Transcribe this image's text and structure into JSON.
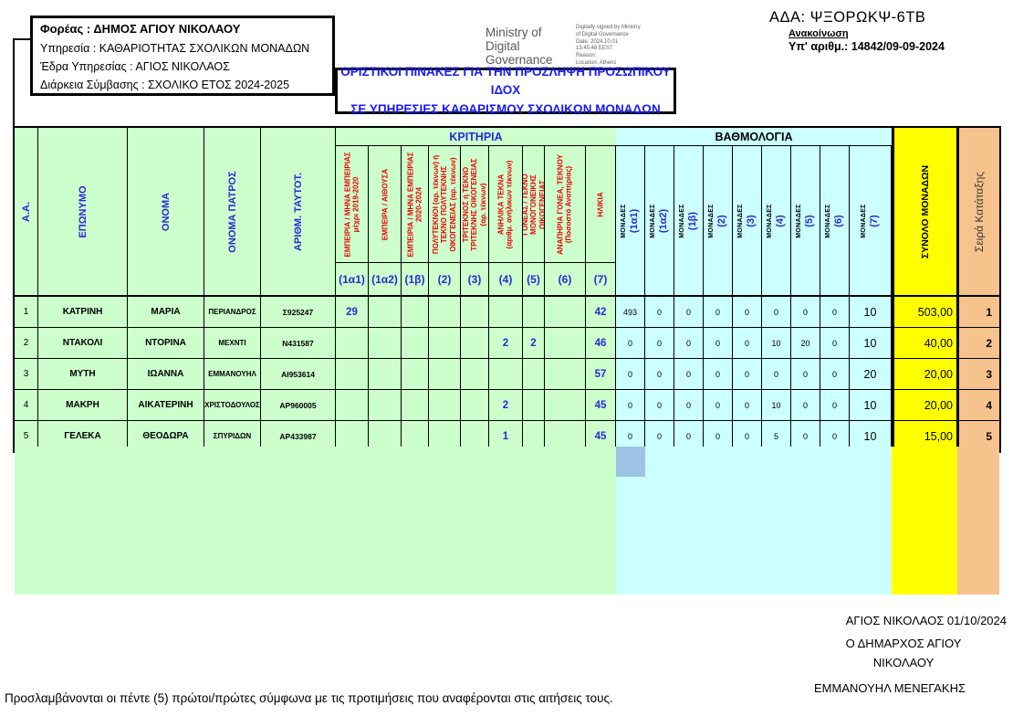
{
  "colors": {
    "green": "#ccffcc",
    "cyan": "#ccffff",
    "yellow": "#ffff00",
    "orange": "#f6c38d",
    "selection_blue": "#9dc3e6",
    "header_blue_text": "#2a2ad4",
    "criteria_red_text": "#ee0000",
    "title_blue_text": "#1a1aff"
  },
  "info_box": {
    "line1": "Φορέας : ΔΗΜΟΣ ΑΓΙΟΥ ΝΙΚΟΛΑΟΥ",
    "line2": "Υπηρεσία : ΚΑΘΑΡΙΟΤΗΤΑΣ  ΣΧΟΛΙΚΩΝ ΜΟΝΑΔΩΝ",
    "line3": "Έδρα Υπηρεσίας :  ΑΓΙΟΣ ΝΙΚΟΛΑΟΣ",
    "line4": "Διάρκεια Σύμβασης :  ΣΧΟΛΙΚΟ ΕΤΟΣ 2024-2025"
  },
  "signature_stamp": {
    "name": "Ministry of\nDigital\nGovernance",
    "details": "Digitally signed by Ministry\nof Digital Governance\nDate: 2024.10.01\n13:45:48 EEST\nReason:\nLocation: Athens"
  },
  "ada": {
    "code": "ΑΔΑ: ΨΞΟΡΩΚΨ-6ΤΒ",
    "announcement": "Ανακοίνωση",
    "number": "Υπ' αριθμ.: 14842/09-09-2024"
  },
  "title_box": {
    "line1": "ΟΡΙΣΤΙΚΟΙ ΠΙΝΑΚΕΣ ΓΙΑ ΤΗΝ ΠΡΟΣΛΗΨΗ ΠΡΟΣΩΠΙΚΟΥ ΙΔΟΧ",
    "line2": "ΣΕ ΥΠΗΡΕΣΙΕΣ ΚΑΘΑΡΙΣΜΟΥ ΣΧΟΛΙΚΩΝ ΜΟΝΑΔΩΝ"
  },
  "table": {
    "left_headers": [
      "Α.Α.",
      "ΕΠΩΝΥΜΟ",
      "ΟΝΟΜΑ",
      "ΟΝΟΜΑ ΠΑΤΡΟΣ",
      "ΑΡΙΘΜ. ΤΑΥΤΟΤ."
    ],
    "criteria": {
      "title": "ΚΡΙΤΗΡΙΑ",
      "columns": [
        {
          "label": "ΕΜΠΕΙΡΙΑ / ΜΗΝΑ ΕΜΠΕΙΡΙΑΣ\nμέχρι 2019-2020",
          "code": "(1α1)"
        },
        {
          "label": "ΕΜΠΕΙΡΑ / ΑΙΘΟΥΣΑ",
          "code": "(1α2)"
        },
        {
          "label": "ΕΜΠΕΙΡΙΑ / ΜΗΝΑ ΕΜΠΕΙΡΙΑΣ\n2020-2024",
          "code": "(1β)"
        },
        {
          "label": "ΠΟΛΥΤΕΚΝΟΙ (αρ. τέκνων) ή\nΤΕΚΝΟ ΠΟΛΥΤΕΚΝΗΣ\nΟΙΚΟΓΕΝΕΙΑΣ (αρ. τέκνων)",
          "code": "(2)"
        },
        {
          "label": "ΤΡΙΤΕΚΝΟΣ ή ΤΕΚΝΟ\nΤΡΙΤΕΚΝΗΣ ΟΙΚΟΓΕΝΕΙΑΣ\n(αρ. τέκνων)",
          "code": "(3)"
        },
        {
          "label": "ΑΝΗΛΙΚΑ ΤΕΚΝΑ\n(αριθμ. ανήλικων τέκνων)",
          "code": "(4)"
        },
        {
          "label": "ΓΟΝΕΑΣ / ΤΕΚΝΟ\nΜΟΝΟΓΟΝΕΙΚΗΣ\nΟΙΚΟΓΕΝΕΙΑΣ",
          "code": "(5)"
        },
        {
          "label": "ΑΝΑΠΗΡΙΑ ΓΟΝΕΑ, ΤΕΚΝΟΥ\n(Ποσοστό Αναπηρίας)",
          "code": "(6)"
        },
        {
          "label": "ΗΛΙΚΙΑ",
          "code": "(7)"
        }
      ]
    },
    "scoring": {
      "title": "ΒΑΘΜΟΛΟΓΙΑ",
      "unit_label": "ΜΟΝΑΔΕΣ",
      "codes": [
        "(1α1)",
        "(1α2)",
        "(1β)",
        "(2)",
        "(3)",
        "(4)",
        "(5)",
        "(6)",
        "(7)"
      ]
    },
    "total_header": "ΣΥΝΟΛΟ ΜΟΝΑΔΩΝ",
    "rank_header": "Σειρά Κατάταξης",
    "rows": [
      {
        "aa": "1",
        "surname": "ΚΑΤΡΙΝΗ",
        "name": "ΜΑΡΙΑ",
        "father": "ΠΕΡΙΑΝΔΡΟΣ",
        "id_number": "Σ925247",
        "criteria": [
          "29",
          "",
          "",
          "",
          "",
          "",
          "",
          "",
          "42"
        ],
        "points": [
          "493",
          "0",
          "0",
          "0",
          "0",
          "0",
          "0",
          "0",
          "10"
        ],
        "total": "503,00",
        "rank": "1"
      },
      {
        "aa": "2",
        "surname": "ΝΤΑΚΟΛΙ",
        "name": "ΝΤΟΡΙΝΑ",
        "father": "ΜΕΧΝΤΙ",
        "id_number": "Ν431587",
        "criteria": [
          "",
          "",
          "",
          "",
          "",
          "2",
          "2",
          "",
          "46"
        ],
        "points": [
          "0",
          "0",
          "0",
          "0",
          "0",
          "10",
          "20",
          "0",
          "10"
        ],
        "total": "40,00",
        "rank": "2"
      },
      {
        "aa": "3",
        "surname": "ΜΥΤΗ",
        "name": "ΙΩΑΝΝΑ",
        "father": "ΕΜΜΑΝΟΥΗΛ",
        "id_number": "ΑΙ953614",
        "criteria": [
          "",
          "",
          "",
          "",
          "",
          "",
          "",
          "",
          "57"
        ],
        "points": [
          "0",
          "0",
          "0",
          "0",
          "0",
          "0",
          "0",
          "0",
          "20"
        ],
        "total": "20,00",
        "rank": "3"
      },
      {
        "aa": "4",
        "surname": "ΜΑΚΡΗ",
        "name": "ΑΙΚΑΤΕΡΙΝΗ",
        "father": "ΧΡΙΣΤΟΔΟΥΛΟΣ",
        "id_number": "ΑΡ960005",
        "criteria": [
          "",
          "",
          "",
          "",
          "",
          "2",
          "",
          "",
          "45"
        ],
        "points": [
          "0",
          "0",
          "0",
          "0",
          "0",
          "10",
          "0",
          "0",
          "10"
        ],
        "total": "20,00",
        "rank": "4"
      },
      {
        "aa": "5",
        "surname": "ΓΕΛΕΚΑ",
        "name": "ΘΕΟΔΩΡΑ",
        "father": "ΣΠΥΡΙΔΩΝ",
        "id_number": "ΑΡ433987",
        "criteria": [
          "",
          "",
          "",
          "",
          "",
          "1",
          "",
          "",
          "45"
        ],
        "points": [
          "0",
          "0",
          "0",
          "0",
          "0",
          "5",
          "0",
          "0",
          "10"
        ],
        "total": "15,00",
        "rank": "5"
      }
    ]
  },
  "footer": {
    "note": "Προσλαμβάνονται οι   πέντε (5) πρώτοι/πρώτες σύμφωνα με τις προτιμήσεις που αναφέρονται στις  αιτήσεις τους.",
    "place_date": "ΑΓΙΟΣ ΝΙΚΟΛΑΟΣ  01/10/2024",
    "signatory_title": "Ο ΔΗΜΑΡΧΟΣ ΑΓΙΟΥ\nΝΙΚΟΛΑΟΥ",
    "signatory_name": "ΕΜΜΑΝΟΥΗΛ ΜΕΝΕΓΑΚΗΣ"
  }
}
